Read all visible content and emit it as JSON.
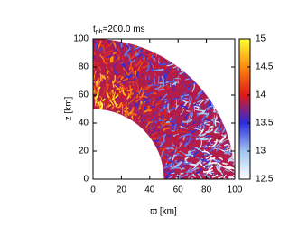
{
  "chart_data": {
    "type": "heatmap",
    "title": [
      "t",
      "pb",
      "=200.0 ms"
    ],
    "xlabel": "ϖ [km]",
    "ylabel": "z [km]",
    "xlim": [
      0,
      100
    ],
    "ylim": [
      0,
      100
    ],
    "xticks": [
      0,
      20,
      40,
      60,
      80,
      100
    ],
    "yticks": [
      0,
      20,
      40,
      60,
      80,
      100
    ],
    "domain_radii": [
      50,
      100
    ],
    "colorbar": {
      "lim": [
        12.5,
        15
      ],
      "ticks": [
        12.5,
        13,
        13.5,
        14,
        14.5,
        15
      ],
      "colors": [
        "#ffffff",
        "#9fc4f0",
        "#2b2be0",
        "#e01818",
        "#ff8a10",
        "#ffff30"
      ]
    }
  }
}
